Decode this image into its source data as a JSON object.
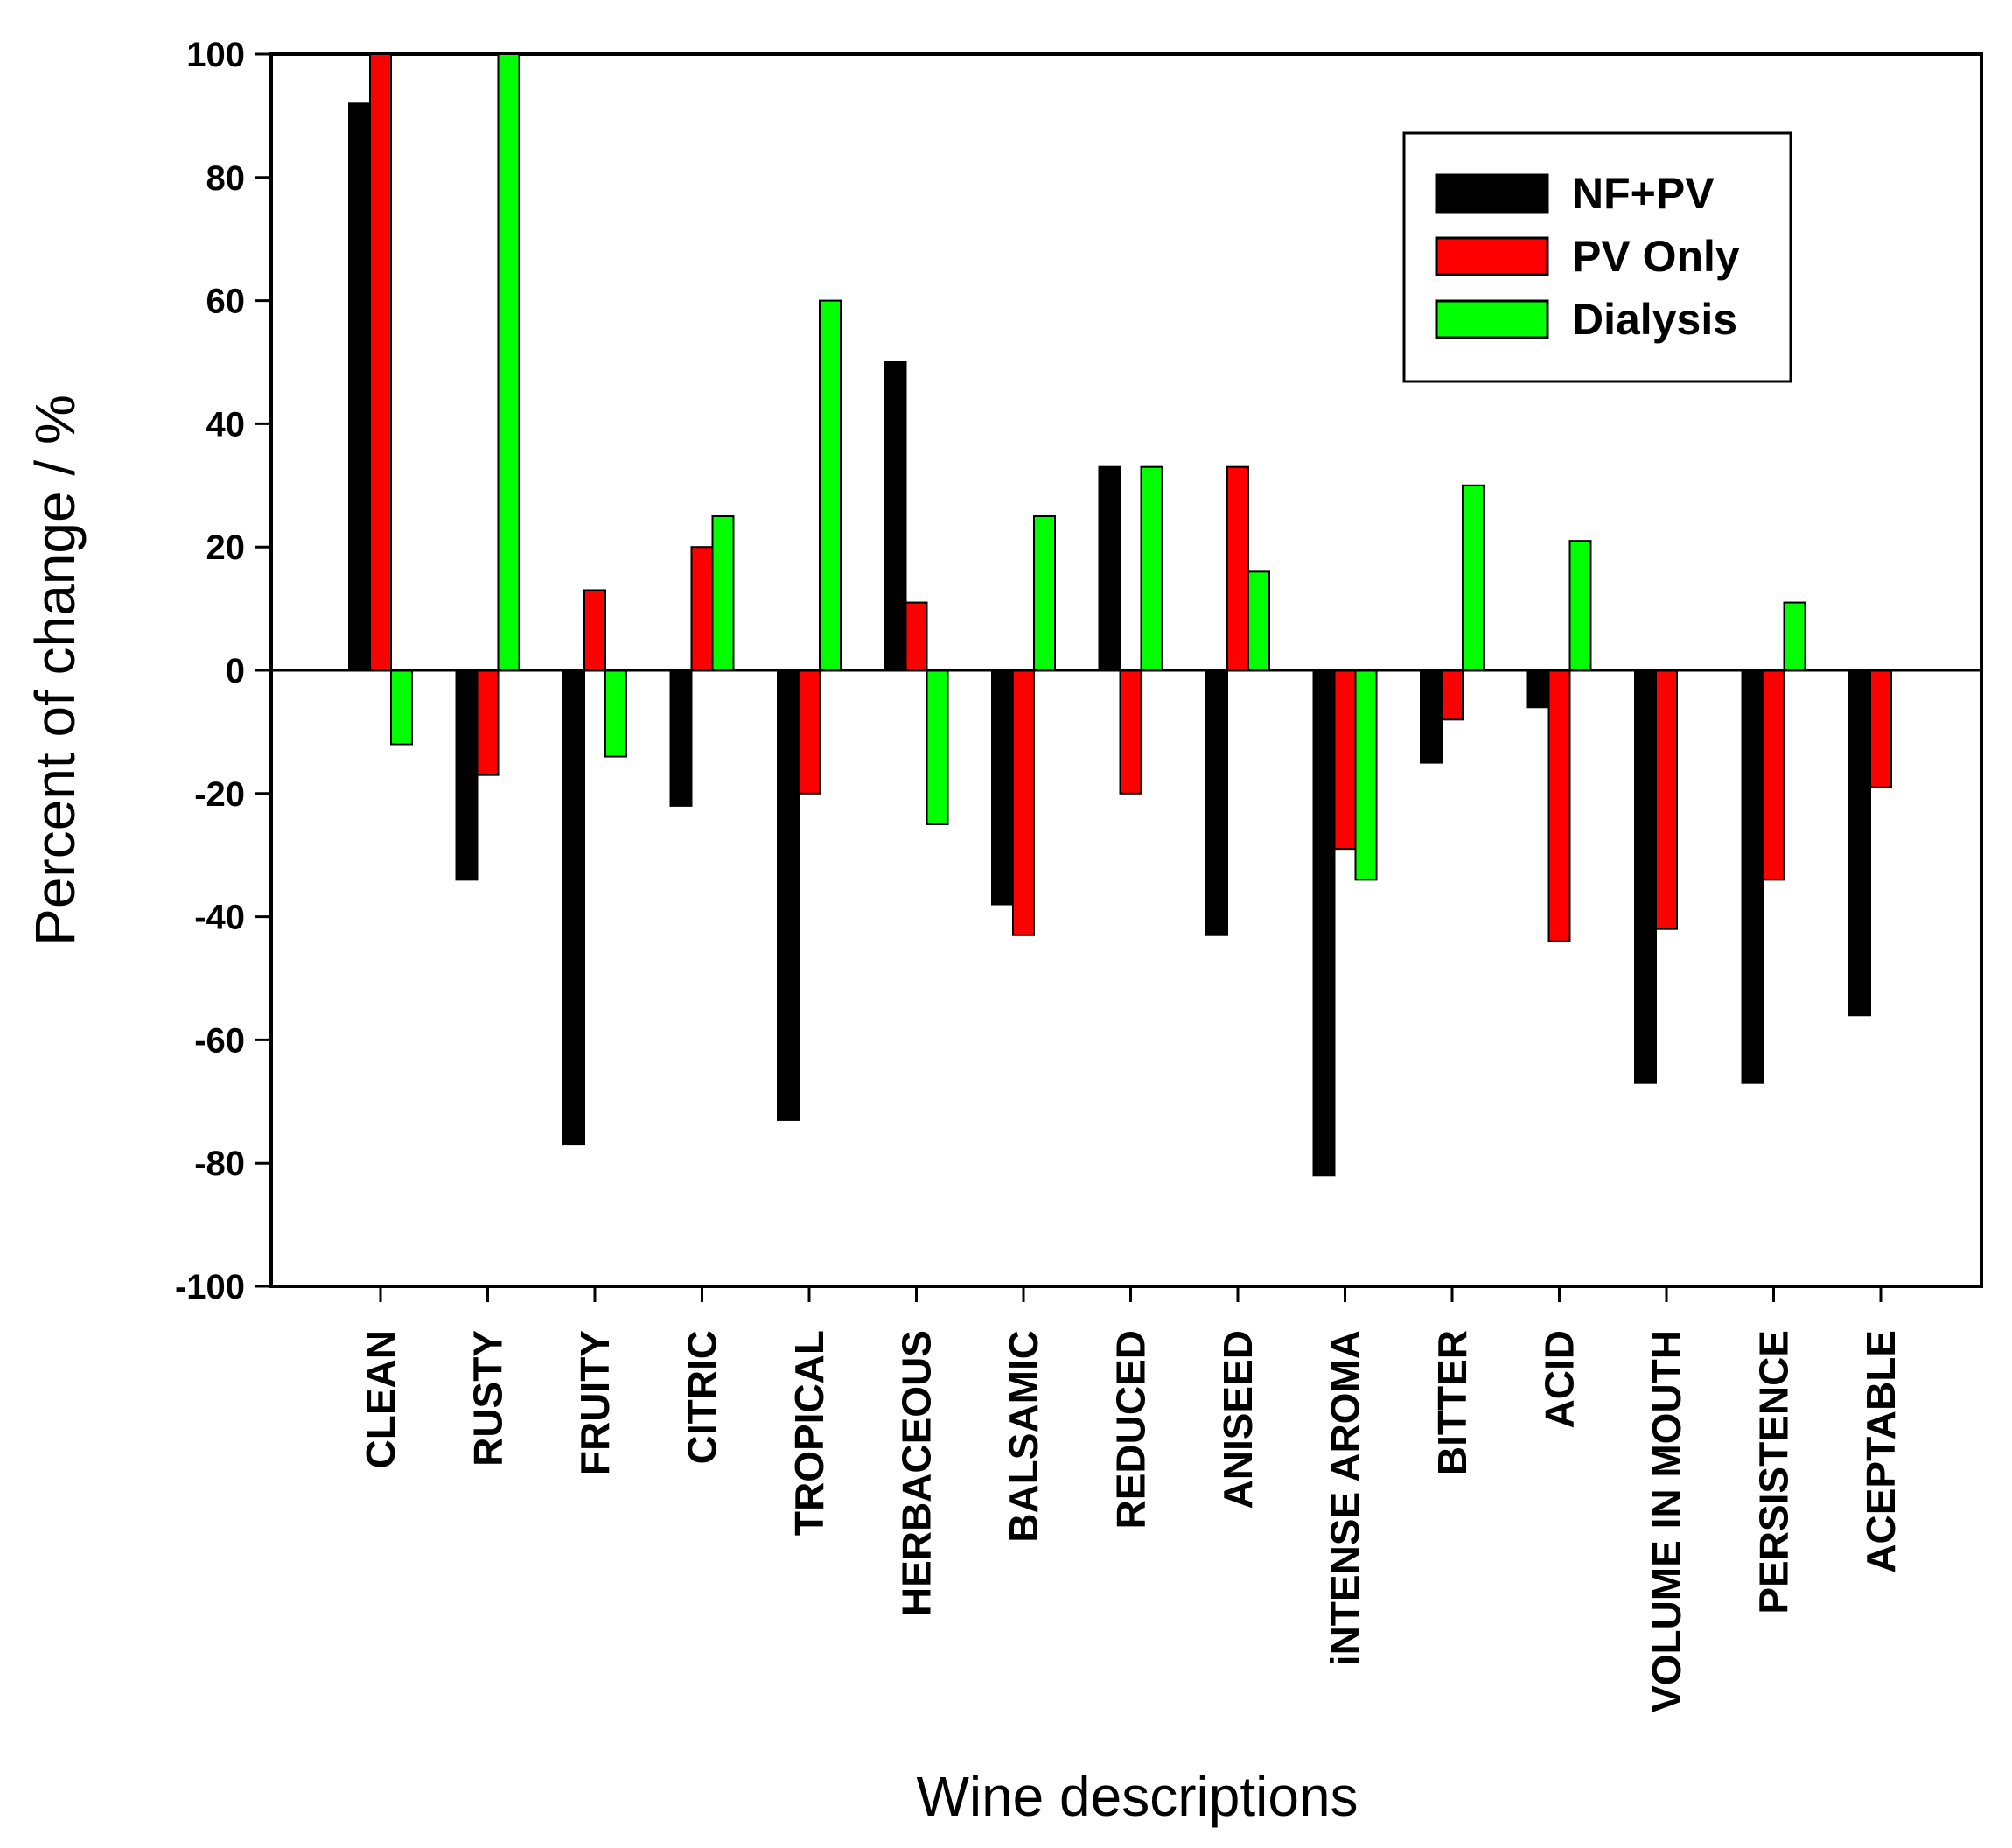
{
  "chart_data": {
    "type": "bar",
    "xlabel": "Wine descriptions",
    "ylabel": "Percent of change  / %",
    "ylim": [
      -100,
      100
    ],
    "yticks": [
      100,
      80,
      60,
      40,
      20,
      0,
      -20,
      -40,
      -60,
      -80,
      -100
    ],
    "grid": false,
    "legend_position": "top-right",
    "categories": [
      "CLEAN",
      "RUSTY",
      "FRUITY",
      "CITRIC",
      "TROPICAL",
      "HERBACEOUS",
      "BALSAMIC",
      "REDUCED",
      "ANISEED",
      "iNTENSE AROMA",
      "BITTER",
      "ACID",
      "VOLUME IN MOUTH",
      "PERSISTENCE",
      "ACEPTABLE"
    ],
    "series": [
      {
        "name": "NF+PV",
        "color": "#000000",
        "values": [
          92,
          -34,
          -77,
          -22,
          -73,
          50,
          -38,
          33,
          -43,
          -82,
          -15,
          -6,
          -67,
          -67,
          -56
        ]
      },
      {
        "name": "PV Only",
        "color": "#ff0000",
        "values": [
          100,
          -17,
          13,
          20,
          -20,
          11,
          -43,
          -20,
          33,
          -29,
          -8,
          -44,
          -42,
          -34,
          -19
        ]
      },
      {
        "name": "Dialysis",
        "color": "#00ff00",
        "values": [
          -12,
          100,
          -14,
          25,
          60,
          -25,
          25,
          33,
          16,
          -34,
          30,
          21,
          0,
          11,
          0
        ]
      }
    ]
  }
}
